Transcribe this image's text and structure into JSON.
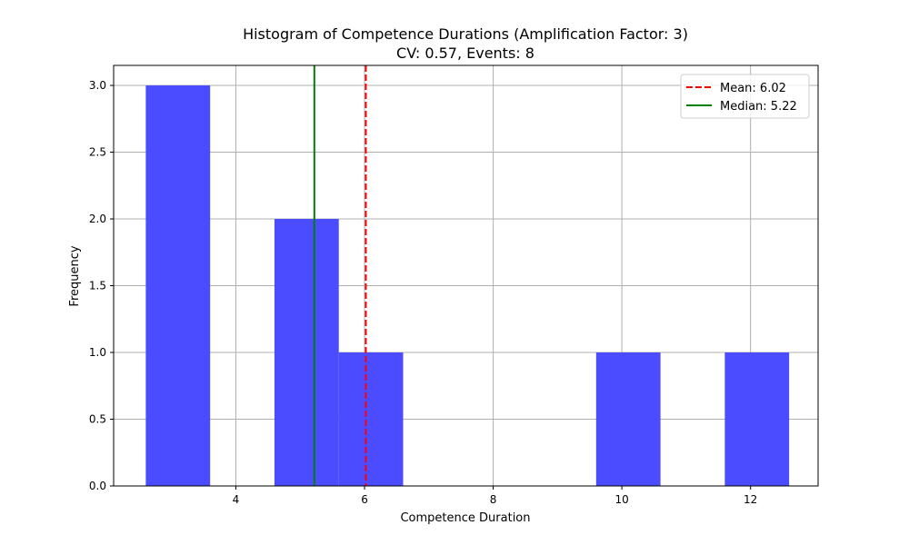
{
  "chart_data": {
    "type": "bar",
    "title": "Histogram of Competence Durations (Amplification Factor: 3)",
    "subtitle": "CV: 0.57, Events: 8",
    "xlabel": "Competence Duration",
    "ylabel": "Frequency",
    "xlim": [
      2.1,
      13.05
    ],
    "ylim": [
      0,
      3.15
    ],
    "xticks": [
      4,
      6,
      8,
      10,
      12
    ],
    "xtick_labels": [
      "4",
      "6",
      "8",
      "10",
      "12"
    ],
    "yticks": [
      0,
      0.5,
      1,
      1.5,
      2,
      2.5,
      3
    ],
    "ytick_labels": [
      "0.0",
      "0.5",
      "1.0",
      "1.5",
      "2.0",
      "2.5",
      "3.0"
    ],
    "grid": true,
    "bins": [
      {
        "x_start": 2.6,
        "x_end": 3.6,
        "count": 3
      },
      {
        "x_start": 4.6,
        "x_end": 5.6,
        "count": 2
      },
      {
        "x_start": 5.6,
        "x_end": 6.6,
        "count": 1
      },
      {
        "x_start": 9.6,
        "x_end": 10.6,
        "count": 1
      },
      {
        "x_start": 11.6,
        "x_end": 12.6,
        "count": 1
      }
    ],
    "bar_color": "#4b4bff",
    "lines": [
      {
        "label": "Mean: 6.02",
        "x": 6.02,
        "color": "#ff0000",
        "style": "dashed"
      },
      {
        "label": "Median: 5.22",
        "x": 5.22,
        "color": "#008000",
        "style": "solid"
      }
    ],
    "legend_position": "top-right"
  }
}
